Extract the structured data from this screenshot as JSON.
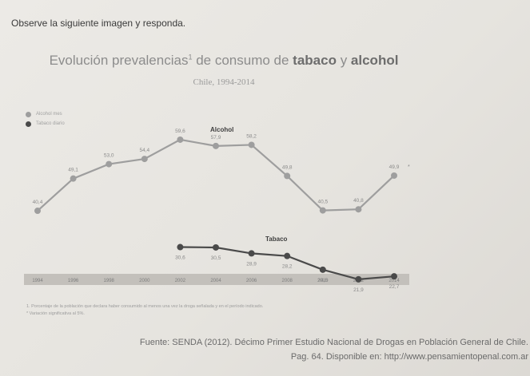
{
  "prompt": "Observe la siguiente imagen y responda.",
  "header": {
    "title_part1": "Evolución prevalencias",
    "title_sup": "1",
    "title_part2": " de consumo de ",
    "title_bold1": "tabaco",
    "title_part3": " y ",
    "title_bold2": "alcohol",
    "subtitle": "Chile, 1994-2014"
  },
  "chart_data": {
    "type": "line",
    "x": [
      "1994",
      "1996",
      "1998",
      "2000",
      "2002",
      "2004",
      "2006",
      "2008",
      "2010",
      "2012",
      "2014"
    ],
    "ylim": [
      0,
      62
    ],
    "series": [
      {
        "name": "Alcohol mes",
        "label": "Alcohol",
        "color": "#9e9e9e",
        "values": [
          40.4,
          49.1,
          53.0,
          54.4,
          59.6,
          57.9,
          58.2,
          49.8,
          40.5,
          40.8,
          49.9
        ],
        "value_labels": [
          "40,4",
          "49,1",
          "53,0",
          "54,4",
          "59,6",
          "57,9",
          "58,2",
          "49,8",
          "40,5",
          "40,8",
          "49,9"
        ]
      },
      {
        "name": "Tabaco diario",
        "label": "Tabaco",
        "color": "#4a4a4a",
        "values": [
          null,
          null,
          null,
          null,
          30.6,
          30.5,
          28.9,
          28.2,
          24.5,
          21.9,
          22.7
        ],
        "value_labels": [
          null,
          null,
          null,
          null,
          "30,6",
          "30,5",
          "28,9",
          "28,2",
          "24,5",
          "21,9",
          "22,7"
        ]
      }
    ],
    "significance_marker": "*"
  },
  "footnotes": [
    "1. Porcentaje de la población que declara haber consumido al menos una vez la droga señalada y en el período indicado.",
    "* Variación significativa al 5%."
  ],
  "source": {
    "line1": "Fuente: SENDA (2012). Décimo Primer Estudio Nacional de Drogas en Población General de Chile.",
    "line2": "Pag. 64. Disponible en: http://www.pensamientopenal.com.ar"
  },
  "colors": {
    "alcohol": "#9e9e9e",
    "tabaco": "#4a4a4a",
    "axis_band": "#c3c0bb"
  }
}
